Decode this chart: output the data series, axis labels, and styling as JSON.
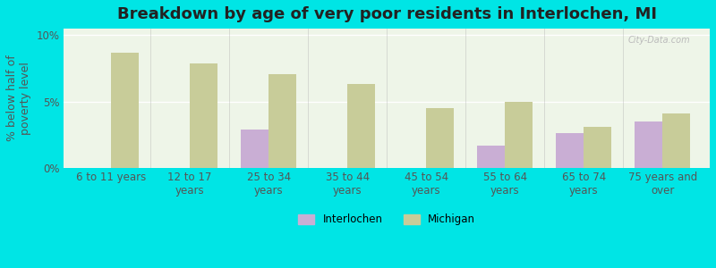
{
  "title": "Breakdown by age of very poor residents in Interlochen, MI",
  "ylabel": "% below half of\npoverty level",
  "categories": [
    "6 to 11 years",
    "12 to 17\nyears",
    "25 to 34\nyears",
    "35 to 44\nyears",
    "45 to 54\nyears",
    "55 to 64\nyears",
    "65 to 74\nyears",
    "75 years and\nover"
  ],
  "interlochen": [
    null,
    null,
    2.9,
    null,
    null,
    1.7,
    2.6,
    3.5
  ],
  "michigan": [
    8.7,
    7.9,
    7.1,
    6.3,
    4.5,
    5.0,
    3.1,
    4.1
  ],
  "bar_color_interlochen": "#c9aed4",
  "bar_color_michigan": "#c8cc99",
  "background_outer": "#00e5e5",
  "background_inner": "#eef5e8",
  "ylim": [
    0,
    10.5
  ],
  "yticks": [
    0,
    5,
    10
  ],
  "ytick_labels": [
    "0%",
    "5%",
    "10%"
  ],
  "bar_width": 0.35,
  "title_fontsize": 13,
  "axis_fontsize": 9,
  "tick_fontsize": 8.5
}
